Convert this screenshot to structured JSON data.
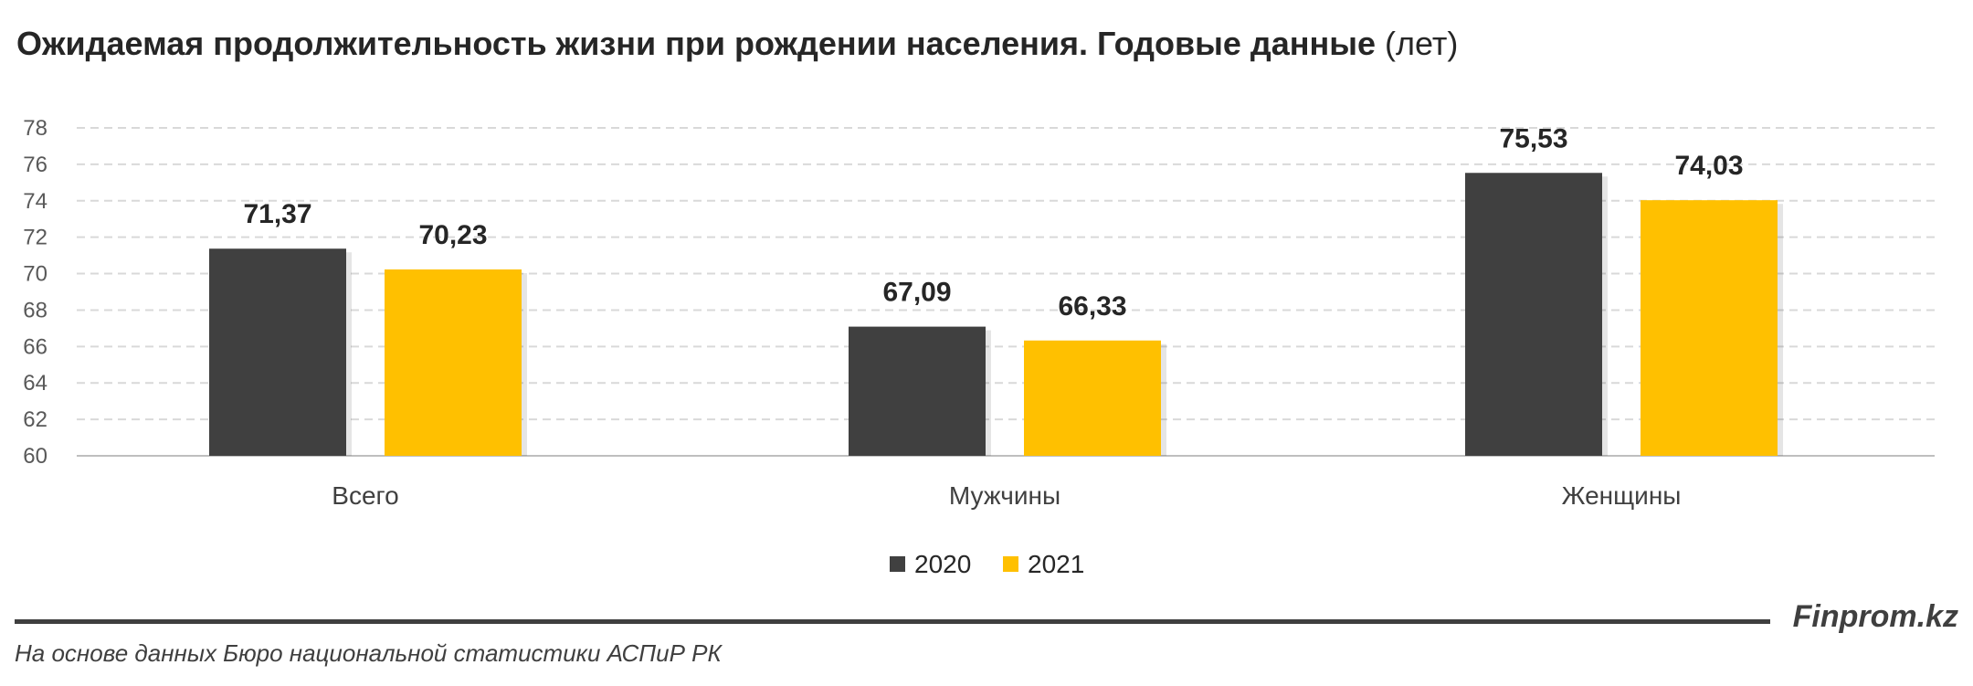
{
  "title": {
    "main": "Ожидаемая продолжительность жизни при рождении населения. Годовые данные",
    "unit": "(лет)"
  },
  "chart_data": {
    "type": "bar",
    "categories": [
      "Всего",
      "Мужчины",
      "Женщины"
    ],
    "series": [
      {
        "name": "2020",
        "color": "#404040",
        "values": [
          71.37,
          67.09,
          75.53
        ],
        "labels": [
          "71,37",
          "67,09",
          "75,53"
        ]
      },
      {
        "name": "2021",
        "color": "#FFC000",
        "values": [
          70.23,
          66.33,
          74.03
        ],
        "labels": [
          "70,23",
          "66,33",
          "74,03"
        ]
      }
    ],
    "ylim": [
      60,
      78
    ],
    "yticks": [
      "60",
      "62",
      "64",
      "66",
      "68",
      "70",
      "72",
      "74",
      "76",
      "78"
    ],
    "grid": true,
    "legend_position": "bottom"
  },
  "footer": {
    "brand": "Finprom.kz",
    "source": "На основе данных Бюро национальной статистики АСПиР РК"
  }
}
